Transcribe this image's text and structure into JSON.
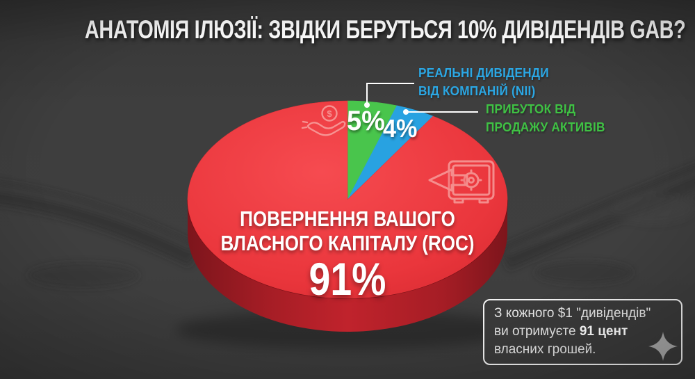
{
  "title": "АНАТОМІЯ ІЛЮЗІЇ: ЗВІДКИ БЕРУТЬСЯ 10% ДИВІДЕНДІВ GAB?",
  "chart_data": {
    "type": "pie",
    "title": "АНАТОМІЯ ІЛЮЗІЇ: ЗВІДКИ БЕРУТЬСЯ 10% ДИВІДЕНДІВ GAB?",
    "unit": "%",
    "start_angle": "12 o'clock",
    "direction": "clockwise",
    "style": "3d-pie",
    "slices": [
      {
        "label": "РЕАЛЬНІ ДИВІДЕНДИ ВІД КОМПАНІЙ (NII)",
        "value": 5,
        "display": "5%",
        "color": "#49c54c",
        "callout_text_color": "#2ba7e4"
      },
      {
        "label": "ПРИБУТОК ВІД ПРОДАЖУ АКТИВІВ",
        "value": 4,
        "display": "4%",
        "color": "#28a2e1",
        "callout_text_color": "#3fc244"
      },
      {
        "label": "ПОВЕРНЕННЯ ВАШОГО ВЛАСНОГО КАПІТАЛУ (ROC)",
        "value": 91,
        "display": "91%",
        "color": "#ee3940",
        "label_text_color": "#ffffff"
      }
    ]
  },
  "callout_nii": {
    "line1": "РЕАЛЬНІ ДИВІДЕНДИ",
    "line2": "ВІД КОМПАНІЙ (NII)"
  },
  "callout_gains": {
    "line1": "ПРИБУТОК ВІД",
    "line2": "ПРОДАЖУ АКТИВІВ"
  },
  "center_label": {
    "line1": "ПОВЕРНЕННЯ ВАШОГО",
    "line2": "ВЛАСНОГО КАПІТАЛУ (ROC)"
  },
  "note": {
    "line1": "З кожного $1 \"дивідендів\"",
    "line2_prefix": "ви отримуєте ",
    "line2_bold": "91 цент",
    "line3": "власних грошей."
  },
  "icons": {
    "hand_coin": "hand-with-dollar-coin-icon",
    "safe": "safe-with-left-arrow-icon",
    "sparkle": "sparkle-icon",
    "icon_color": "#f7a2a0",
    "sparkle_color": "#a8a8a8"
  },
  "colors": {
    "background": "#3d3d3d",
    "pie_side_dark_red": "#a51d25",
    "callout_line": "#ffffff",
    "note_border": "#f2f2f2",
    "note_text": "#e6e6e6"
  }
}
